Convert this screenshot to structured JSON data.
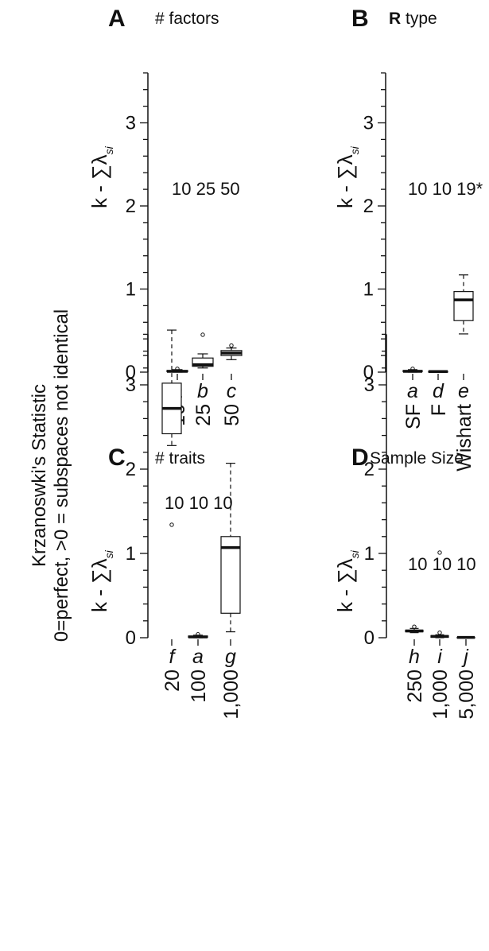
{
  "supertitle": "Krzanoswki's Statistic",
  "supersubtitle": "0=perfect, >0 = subspaces not identical",
  "y_axis_label": "k - ∑λ",
  "y_axis_subscript": "si",
  "chart_data": [
    {
      "type": "box",
      "panel": "A",
      "title": "# factors",
      "ylim": [
        0,
        3.6
      ],
      "yticks": [
        0,
        1,
        2,
        3
      ],
      "count_labels": [
        "10",
        "25",
        "50"
      ],
      "categories": [
        "10",
        "25",
        "50"
      ],
      "letters": [
        "a",
        "b",
        "c"
      ],
      "boxes": [
        {
          "whisker_low": 0.0,
          "q1": 0.005,
          "median": 0.01,
          "q3": 0.02,
          "whisker_high": 0.03,
          "outliers": [
            0.04
          ]
        },
        {
          "whisker_low": 0.05,
          "q1": 0.07,
          "median": 0.09,
          "q3": 0.17,
          "whisker_high": 0.22,
          "outliers": [
            0.45
          ]
        },
        {
          "whisker_low": 0.15,
          "q1": 0.2,
          "median": 0.23,
          "q3": 0.26,
          "whisker_high": 0.29,
          "outliers": [
            0.32
          ]
        }
      ]
    },
    {
      "type": "box",
      "panel": "B",
      "title_bold": "R",
      "title": " type",
      "ylim": [
        0,
        3.6
      ],
      "yticks": [
        0,
        1,
        2,
        3
      ],
      "count_labels": [
        "10",
        "10",
        "19*"
      ],
      "categories": [
        "SF",
        "F",
        "Wishart"
      ],
      "letters": [
        "a",
        "d",
        "e"
      ],
      "boxes": [
        {
          "whisker_low": 0.0,
          "q1": 0.005,
          "median": 0.01,
          "q3": 0.02,
          "whisker_high": 0.03,
          "outliers": [
            0.04
          ]
        },
        {
          "whisker_low": 0.0,
          "q1": 0.004,
          "median": 0.007,
          "q3": 0.01,
          "whisker_high": 0.013,
          "outliers": []
        },
        {
          "whisker_low": 0.46,
          "q1": 0.62,
          "median": 0.87,
          "q3": 0.97,
          "whisker_high": 1.17,
          "outliers": []
        }
      ]
    },
    {
      "type": "box",
      "panel": "C",
      "title": "# traits",
      "ylim": [
        0,
        3.6
      ],
      "yticks": [
        0,
        1,
        2,
        3
      ],
      "count_labels": [
        "10",
        "10",
        "10"
      ],
      "categories": [
        "20",
        "100",
        "1,000"
      ],
      "letters": [
        "f",
        "a",
        "g"
      ],
      "boxes": [
        {
          "whisker_low": 2.28,
          "q1": 2.42,
          "median": 2.72,
          "q3": 3.02,
          "whisker_high": 3.65,
          "outliers": [
            1.34
          ]
        },
        {
          "whisker_low": 0.0,
          "q1": 0.005,
          "median": 0.01,
          "q3": 0.02,
          "whisker_high": 0.03,
          "outliers": [
            0.04
          ]
        },
        {
          "whisker_low": 0.07,
          "q1": 0.29,
          "median": 1.07,
          "q3": 1.2,
          "whisker_high": 2.07,
          "outliers": []
        }
      ]
    },
    {
      "type": "box",
      "panel": "D",
      "title": "Sample Size",
      "ylim": [
        0,
        3.6
      ],
      "yticks": [
        0,
        1,
        2,
        3
      ],
      "count_labels": [
        "10",
        "10",
        "10"
      ],
      "categories": [
        "250",
        "1,000",
        "5,000"
      ],
      "letters": [
        "h",
        "i",
        "j"
      ],
      "boxes": [
        {
          "whisker_low": 0.06,
          "q1": 0.07,
          "median": 0.08,
          "q3": 0.09,
          "whisker_high": 0.11,
          "outliers": [
            0.13
          ]
        },
        {
          "whisker_low": 0.0,
          "q1": 0.005,
          "median": 0.015,
          "q3": 0.025,
          "whisker_high": 0.035,
          "outliers": [
            1.01,
            0.06
          ]
        },
        {
          "whisker_low": 0.0,
          "q1": 0.002,
          "median": 0.004,
          "q3": 0.006,
          "whisker_high": 0.008,
          "outliers": []
        }
      ]
    }
  ]
}
